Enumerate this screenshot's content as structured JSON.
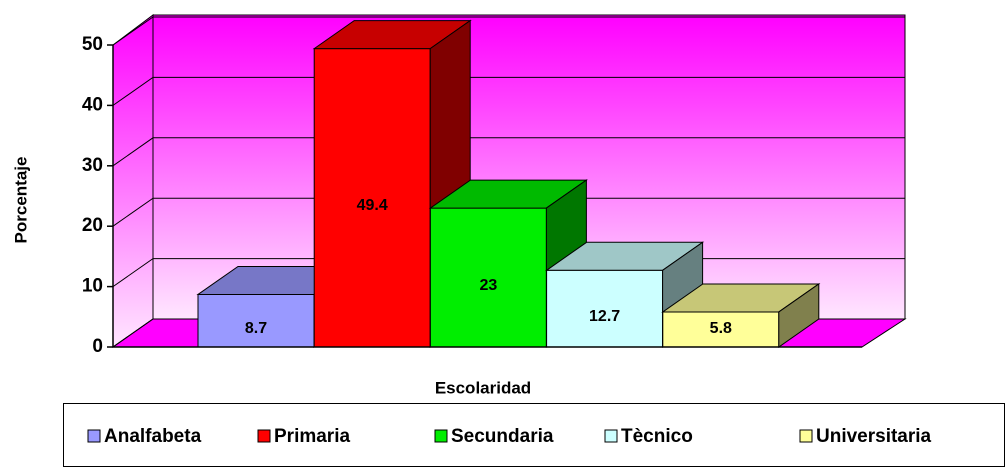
{
  "chart_data": {
    "type": "bar3d",
    "x_label": "Escolaridad",
    "y_label": "Porcentaje",
    "categories": [
      "Analfabeta",
      "Primaria",
      "Secundaria",
      "Tècnico",
      "Universitaria"
    ],
    "values": [
      8.7,
      49.4,
      23,
      12.7,
      5.8
    ],
    "colors": [
      "#9999ff",
      "#ff0000",
      "#00ee00",
      "#ccffff",
      "#ffff99"
    ],
    "ylim": [
      0,
      50
    ],
    "yticks": [
      0,
      10,
      20,
      30,
      40,
      50
    ],
    "grid": true,
    "legend": "bottom"
  }
}
